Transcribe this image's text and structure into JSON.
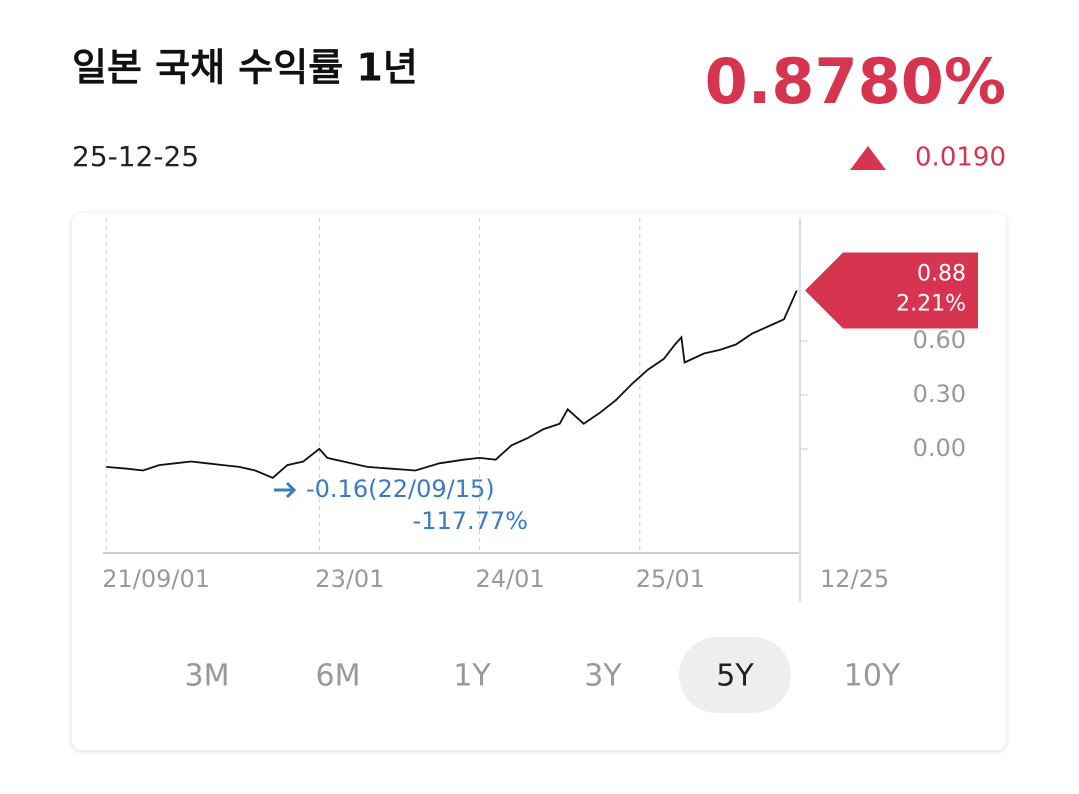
{
  "header": {
    "title": "일본 국채 수익률 1년",
    "date": "25-12-25",
    "price": "0.8780%",
    "change": "0.0190"
  },
  "chart_data": {
    "type": "line",
    "x": [
      2021.67,
      2021.8,
      2021.9,
      2022.0,
      2022.1,
      2022.2,
      2022.3,
      2022.4,
      2022.5,
      2022.6,
      2022.71,
      2022.8,
      2022.9,
      2023.0,
      2023.05,
      2023.15,
      2023.3,
      2023.45,
      2023.6,
      2023.75,
      2023.9,
      2024.0,
      2024.1,
      2024.2,
      2024.3,
      2024.4,
      2024.5,
      2024.55,
      2024.65,
      2024.75,
      2024.85,
      2024.95,
      2025.05,
      2025.15,
      2025.22,
      2025.26,
      2025.28,
      2025.4,
      2025.5,
      2025.6,
      2025.7,
      2025.8,
      2025.9,
      2025.98
    ],
    "series": [
      {
        "color": "#111111",
        "values": [
          -0.1,
          -0.11,
          -0.12,
          -0.09,
          -0.08,
          -0.07,
          -0.08,
          -0.09,
          -0.1,
          -0.12,
          -0.16,
          -0.09,
          -0.07,
          0.0,
          -0.05,
          -0.07,
          -0.1,
          -0.11,
          -0.12,
          -0.08,
          -0.06,
          -0.05,
          -0.06,
          0.02,
          0.06,
          0.11,
          0.14,
          0.22,
          0.14,
          0.2,
          0.27,
          0.36,
          0.44,
          0.5,
          0.58,
          0.62,
          0.48,
          0.53,
          0.55,
          0.58,
          0.64,
          0.68,
          0.72,
          0.88
        ]
      }
    ],
    "xlim": [
      2021.65,
      2026.0
    ],
    "ylim": [
      -0.578,
      1.244
    ],
    "xticks": [
      {
        "value": 2021.67,
        "label": "21/09/01"
      },
      {
        "value": 2023.0,
        "label": "23/01"
      },
      {
        "value": 2024.0,
        "label": "24/01"
      },
      {
        "value": 2025.0,
        "label": "25/01"
      },
      {
        "value": 2026.0,
        "label": "12/25"
      }
    ],
    "yticks": [
      {
        "value": 0,
        "label": "0.00"
      },
      {
        "value": 0.3,
        "label": "0.30"
      },
      {
        "value": 0.6,
        "label": "0.60"
      }
    ],
    "current": {
      "value": 0.88,
      "label": "0.88",
      "change": "2.21%"
    },
    "low": {
      "x": 2022.71,
      "value": -0.16,
      "label": "-0.16(22/09/15)",
      "change": "-117.77%"
    },
    "grid": true
  },
  "tabs": [
    "3M",
    "6M",
    "1Y",
    "3Y",
    "5Y",
    "10Y"
  ],
  "selected_tab": 4
}
